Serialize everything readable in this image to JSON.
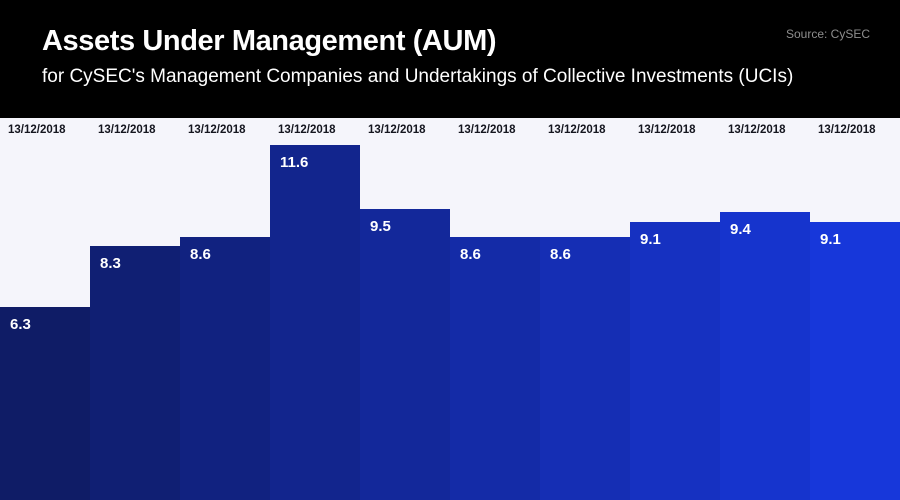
{
  "header": {
    "title": "Assets Under Management (AUM)",
    "subtitle": "for CySEC's Management Companies and Undertakings of Collective Investments (UCIs)",
    "source": "Source: CySEC"
  },
  "colors": {
    "header_bg": "#000000",
    "chart_bg": "#f5f5fb",
    "title_text": "#ffffff",
    "subtitle_text": "#ffffff",
    "source_text": "#8e8e8e",
    "date_label_text": "#15161f",
    "value_label_text": "#ffffff",
    "bar_palette": [
      "#0f1c66",
      "#101f73",
      "#112280",
      "#12258d",
      "#13289a",
      "#142ba7",
      "#152eb4",
      "#1631c1",
      "#1634cd",
      "#1737da"
    ]
  },
  "chart_data": {
    "type": "bar",
    "title": "Assets Under Management (AUM)",
    "subtitle": "for CySEC's Management Companies and Undertakings of Collective Investments (UCIs)",
    "source": "Source: CySEC",
    "categories": [
      "13/12/2018",
      "13/12/2018",
      "13/12/2018",
      "13/12/2018",
      "13/12/2018",
      "13/12/2018",
      "13/12/2018",
      "13/12/2018",
      "13/12/2018",
      "13/12/2018"
    ],
    "values": [
      6.3,
      8.3,
      8.6,
      11.6,
      9.5,
      8.6,
      8.6,
      9.1,
      9.4,
      9.1
    ],
    "value_labels": [
      "6.3",
      "8.3",
      "8.6",
      "11.6",
      "9.5",
      "8.6",
      "8.6",
      "9.1",
      "9.4",
      "9.1"
    ],
    "bar_colors": [
      "#0f1c66",
      "#101f73",
      "#112280",
      "#12258d",
      "#13289a",
      "#142ba7",
      "#152eb4",
      "#1631c1",
      "#1634cd",
      "#1737da"
    ],
    "ylim": [
      0,
      12.5
    ],
    "xlabel": "",
    "ylabel": "",
    "grid": false,
    "legend": "none",
    "orientation": "vertical",
    "value_labels_visible": true,
    "category_labels_position": "top"
  }
}
